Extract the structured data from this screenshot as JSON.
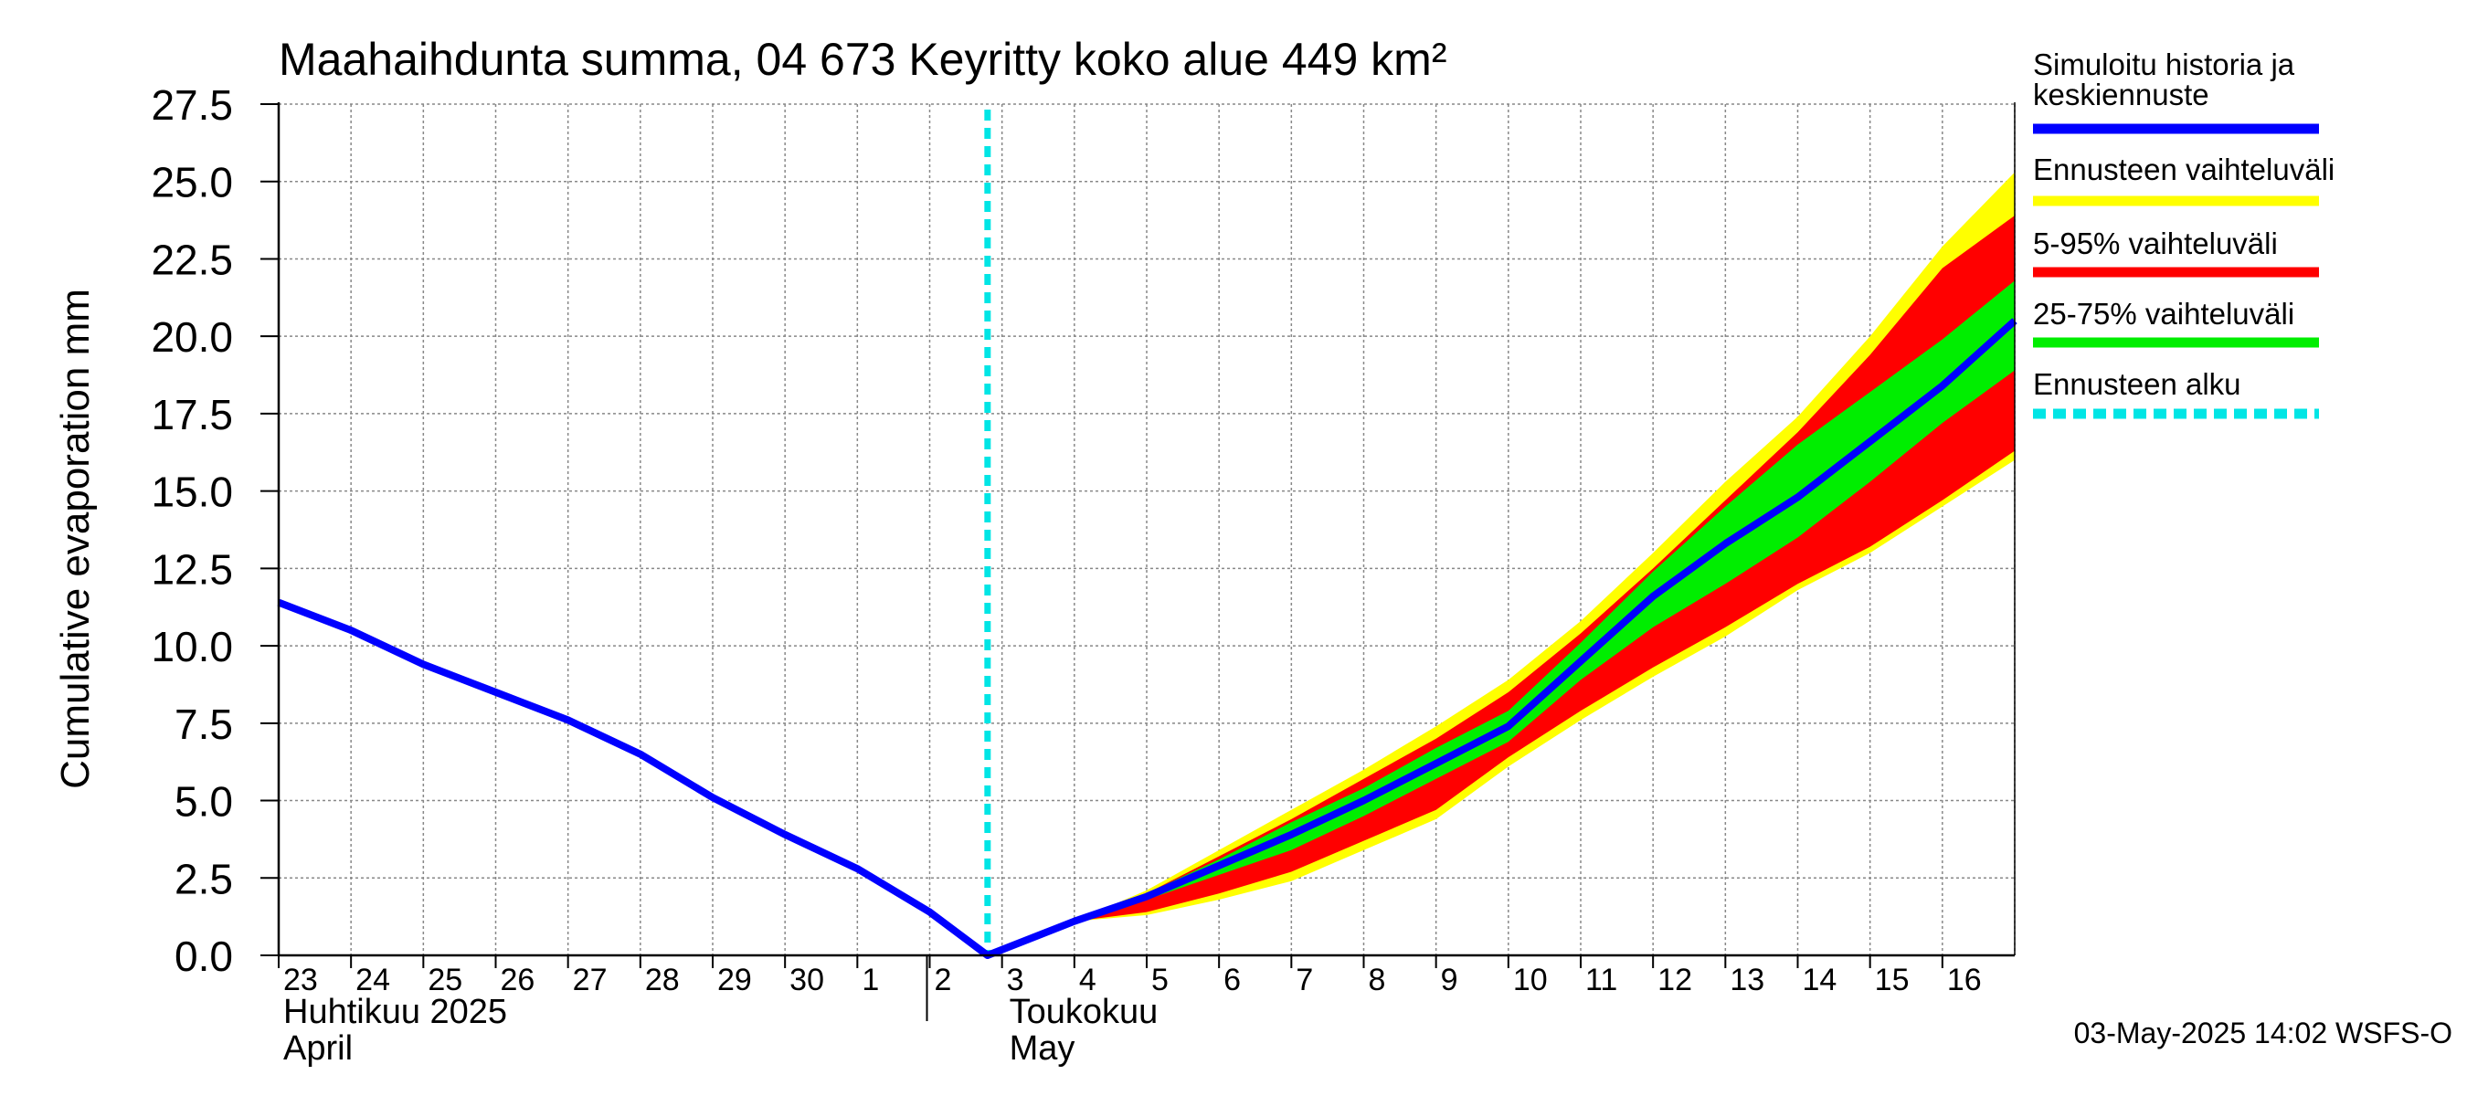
{
  "chart_data": {
    "type": "area",
    "title": "Maahaihdunta summa, 04 673 Keyritty koko alue 449 km²",
    "ylabel": "Cumulative evaporation   mm",
    "ylim": [
      0,
      27.5
    ],
    "yticks": [
      "0.0",
      "2.5",
      "5.0",
      "7.5",
      "10.0",
      "12.5",
      "15.0",
      "17.5",
      "20.0",
      "22.5",
      "25.0",
      "27.5"
    ],
    "x_day_labels": [
      "23",
      "24",
      "25",
      "26",
      "27",
      "28",
      "29",
      "30",
      "1",
      "2",
      "3",
      "4",
      "5",
      "6",
      "7",
      "8",
      "9",
      "10",
      "11",
      "12",
      "13",
      "14",
      "15",
      "16"
    ],
    "month_labels": [
      {
        "line1": "Huhtikuu  2025",
        "line2": "April",
        "at_day": 0
      },
      {
        "line1": "Toukokuu",
        "line2": "May",
        "at_day": 9
      }
    ],
    "grid": true,
    "forecast_start_day": 9.8,
    "series": [
      {
        "name": "Simuloitu historia ja keskiennuste",
        "color": "#0000ff",
        "x": [
          0,
          1,
          2,
          3,
          4,
          5,
          6,
          7,
          8,
          9,
          9.8,
          11,
          12,
          13,
          14,
          15,
          16,
          17,
          18,
          19,
          20,
          21,
          22,
          23,
          24
        ],
        "values": [
          11.4,
          10.5,
          9.4,
          8.5,
          7.6,
          6.5,
          5.1,
          3.9,
          2.8,
          1.4,
          0.0,
          1.1,
          1.9,
          2.9,
          3.9,
          5.0,
          6.2,
          7.4,
          9.5,
          11.6,
          13.3,
          14.8,
          16.6,
          18.4,
          20.5
        ]
      },
      {
        "name": "Ennusteen vaihteluväli",
        "color": "#ffff00",
        "type": "band",
        "x": [
          11,
          12,
          13,
          14,
          15,
          16,
          17,
          18,
          19,
          20,
          21,
          22,
          23,
          24
        ],
        "lower": [
          1.1,
          1.3,
          1.8,
          2.4,
          3.4,
          4.4,
          6.1,
          7.6,
          9.0,
          10.3,
          11.8,
          13.0,
          14.5,
          16.0
        ],
        "upper": [
          1.1,
          2.1,
          3.4,
          4.7,
          6.0,
          7.4,
          8.9,
          10.8,
          13.0,
          15.3,
          17.4,
          20.0,
          22.9,
          25.3
        ]
      },
      {
        "name": "5-95% vaihteluväli",
        "color": "#ff0000",
        "type": "band",
        "x": [
          11,
          12,
          13,
          14,
          15,
          16,
          17,
          18,
          19,
          20,
          21,
          22,
          23,
          24
        ],
        "lower": [
          1.1,
          1.4,
          2.0,
          2.7,
          3.7,
          4.7,
          6.4,
          7.9,
          9.3,
          10.6,
          12.0,
          13.2,
          14.7,
          16.3
        ],
        "upper": [
          1.1,
          2.0,
          3.2,
          4.4,
          5.7,
          7.0,
          8.5,
          10.4,
          12.5,
          14.7,
          16.9,
          19.4,
          22.2,
          23.9
        ]
      },
      {
        "name": "25-75% vaihteluväli",
        "color": "#00ee00",
        "type": "band",
        "x": [
          11,
          12,
          13,
          14,
          15,
          16,
          17,
          18,
          19,
          20,
          21,
          22,
          23,
          24
        ],
        "lower": [
          1.1,
          1.8,
          2.6,
          3.4,
          4.5,
          5.7,
          6.9,
          8.9,
          10.6,
          12.0,
          13.5,
          15.3,
          17.2,
          18.9
        ],
        "upper": [
          1.1,
          2.0,
          3.1,
          4.3,
          5.4,
          6.7,
          7.9,
          10.1,
          12.4,
          14.5,
          16.5,
          18.2,
          19.9,
          21.8
        ]
      }
    ],
    "legend": {
      "position": "right",
      "items": [
        {
          "label": "Simuloitu historia ja",
          "label2": "keskiennuste",
          "color": "#0000ff",
          "style": "solid"
        },
        {
          "label": "Ennusteen vaihteluväli",
          "color": "#ffff00",
          "style": "solid"
        },
        {
          "label": "5-95% vaihteluväli",
          "color": "#ff0000",
          "style": "solid"
        },
        {
          "label": "25-75% vaihteluväli",
          "color": "#00ee00",
          "style": "solid"
        },
        {
          "label": "Ennusteen alku",
          "color": "#00e5e5",
          "style": "dashed"
        }
      ]
    },
    "footer": "03-May-2025 14:02 WSFS-O"
  }
}
